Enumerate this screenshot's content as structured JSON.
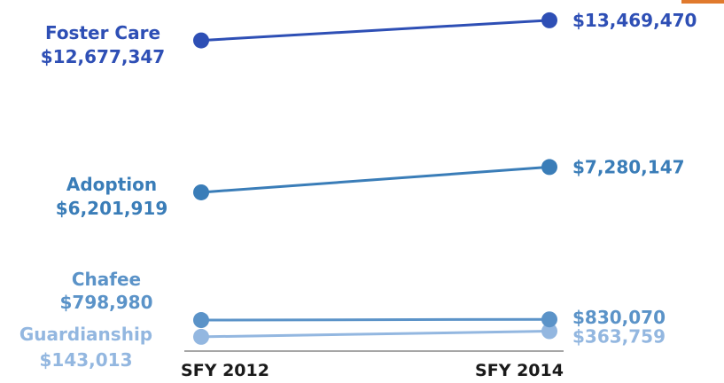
{
  "chart_data": {
    "type": "line",
    "categories": [
      "SFY 2012",
      "SFY 2014"
    ],
    "series": [
      {
        "name": "Foster Care",
        "values": [
          12677347,
          13469470
        ],
        "value_labels": [
          "$12,677,347",
          "$13,469,470"
        ],
        "color": "#2e4fb5"
      },
      {
        "name": "Adoption",
        "values": [
          6201919,
          7280147
        ],
        "value_labels": [
          "$6,201,919",
          "$7,280,147"
        ],
        "color": "#3a7db8"
      },
      {
        "name": "Chafee",
        "values": [
          798980,
          830070
        ],
        "value_labels": [
          "$798,980",
          "$830,070"
        ],
        "color": "#5b93c8"
      },
      {
        "name": "Guardianship",
        "values": [
          143013,
          363759
        ],
        "value_labels": [
          "$143,013",
          "$363,759"
        ],
        "color": "#93b7e0"
      }
    ],
    "axis_color": "#a6a6a6",
    "accent_color": "#e07a2e"
  }
}
